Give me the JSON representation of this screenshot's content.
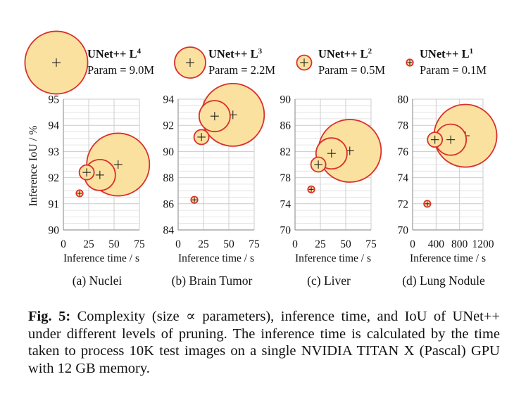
{
  "legend": [
    {
      "title": "UNet++ L",
      "sup": "4",
      "param": "Param = 9.0M"
    },
    {
      "title": "UNet++ L",
      "sup": "3",
      "param": "Param = 2.2M"
    },
    {
      "title": "UNet++ L",
      "sup": "2",
      "param": "Param = 0.5M"
    },
    {
      "title": "UNet++ L",
      "sup": "1",
      "param": "Param = 0.1M"
    }
  ],
  "shared_ylabel": "Inference IoU / %",
  "colors": {
    "fill": "#fbe1a0",
    "stroke": "#d9312b",
    "grid": "#cccccc",
    "axis": "#999999"
  },
  "caption": {
    "label": "Fig. 5:",
    "text": " Complexity (size ∝ parameters), inference time, and IoU of UNet++ under different levels of pruning. The inference time is calculated by the time taken to process 10K test images on a single NVIDIA TITAN X (Pascal) GPU with 12 GB memory."
  },
  "chart_data": [
    {
      "type": "scatter",
      "subtitle": "(a) Nuclei",
      "xlabel": "Inference time / s",
      "xlim": [
        0,
        75
      ],
      "xticks": [
        0,
        25,
        50,
        75
      ],
      "ylim": [
        90,
        95
      ],
      "yticks": [
        90,
        91,
        92,
        93,
        94,
        95
      ],
      "points": [
        {
          "level": "L1",
          "param_m": 0.1,
          "x": 16,
          "y": 91.4
        },
        {
          "level": "L2",
          "param_m": 0.5,
          "x": 23,
          "y": 92.2
        },
        {
          "level": "L3",
          "param_m": 2.2,
          "x": 36,
          "y": 92.1
        },
        {
          "level": "L4",
          "param_m": 9.0,
          "x": 54,
          "y": 92.5
        }
      ]
    },
    {
      "type": "scatter",
      "subtitle": "(b) Brain Tumor",
      "xlabel": "Inference time / s",
      "xlim": [
        0,
        75
      ],
      "xticks": [
        0,
        25,
        50,
        75
      ],
      "ylim": [
        84,
        94
      ],
      "yticks": [
        84,
        86,
        88,
        90,
        92,
        94
      ],
      "points": [
        {
          "level": "L1",
          "param_m": 0.1,
          "x": 16,
          "y": 86.3
        },
        {
          "level": "L2",
          "param_m": 0.5,
          "x": 23,
          "y": 91.1
        },
        {
          "level": "L3",
          "param_m": 2.2,
          "x": 36,
          "y": 92.7
        },
        {
          "level": "L4",
          "param_m": 9.0,
          "x": 54,
          "y": 92.8
        }
      ]
    },
    {
      "type": "scatter",
      "subtitle": "(c) Liver",
      "xlabel": "Inference time / s",
      "xlim": [
        0,
        75
      ],
      "xticks": [
        0,
        25,
        50,
        75
      ],
      "ylim": [
        70,
        90
      ],
      "yticks": [
        70,
        74,
        78,
        82,
        86,
        90
      ],
      "points": [
        {
          "level": "L1",
          "param_m": 0.1,
          "x": 16,
          "y": 76.2
        },
        {
          "level": "L2",
          "param_m": 0.5,
          "x": 23,
          "y": 80.0
        },
        {
          "level": "L3",
          "param_m": 2.2,
          "x": 36,
          "y": 81.7
        },
        {
          "level": "L4",
          "param_m": 9.0,
          "x": 54,
          "y": 82.1
        }
      ]
    },
    {
      "type": "scatter",
      "subtitle": "(d) Lung Nodule",
      "xlabel": "Inference time / s",
      "xlim": [
        0,
        1200
      ],
      "xticks": [
        0,
        400,
        800,
        1200
      ],
      "ylim": [
        70,
        80
      ],
      "yticks": [
        70,
        72,
        74,
        76,
        78,
        80
      ],
      "points": [
        {
          "level": "L1",
          "param_m": 0.1,
          "x": 250,
          "y": 72.0
        },
        {
          "level": "L2",
          "param_m": 0.5,
          "x": 380,
          "y": 76.9
        },
        {
          "level": "L3",
          "param_m": 2.2,
          "x": 650,
          "y": 76.9
        },
        {
          "level": "L4",
          "param_m": 9.0,
          "x": 900,
          "y": 77.2
        }
      ]
    }
  ]
}
